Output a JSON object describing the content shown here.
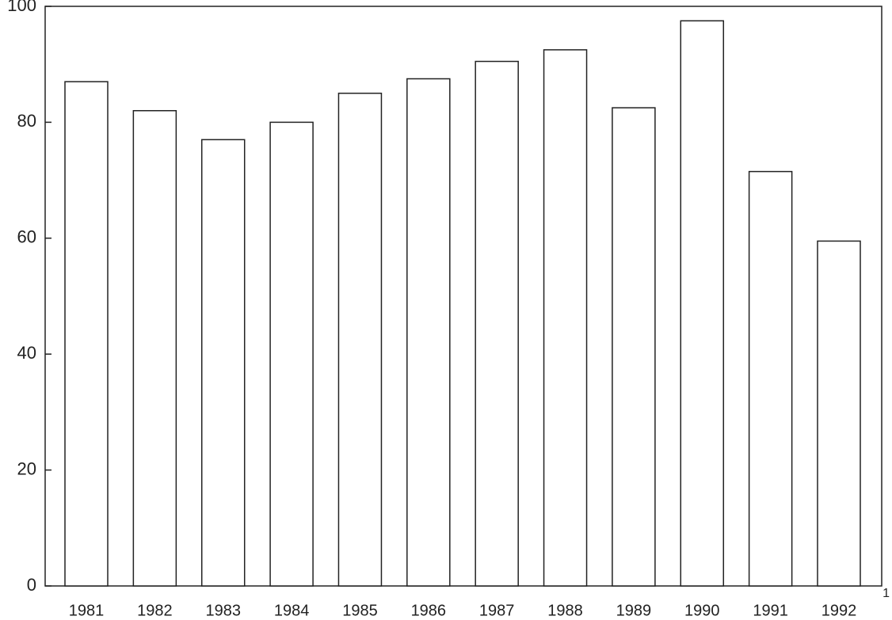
{
  "chart_data": {
    "type": "bar",
    "categories": [
      "1981",
      "1982",
      "1983",
      "1984",
      "1985",
      "1986",
      "1987",
      "1988",
      "1989",
      "1990",
      "1991",
      "1992"
    ],
    "values": [
      87,
      82,
      77,
      80,
      85,
      87.5,
      90.5,
      92.5,
      82.5,
      97.5,
      71.5,
      59.5
    ],
    "color": "#ffffff",
    "ylim": [
      0,
      100
    ],
    "yticks": [
      0,
      20,
      40,
      60,
      80,
      100
    ],
    "annotation": "1"
  }
}
